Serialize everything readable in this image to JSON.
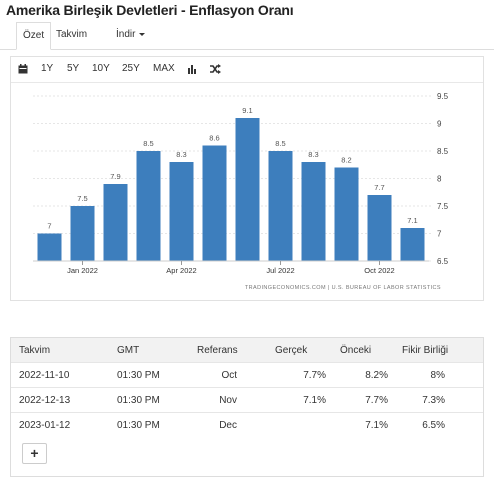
{
  "title": "Amerika Birleşik Devletleri - Enflasyon Oranı",
  "tabs": [
    {
      "label": "Özet"
    },
    {
      "label": "Takvim"
    },
    {
      "label": "İndir"
    }
  ],
  "toolbar": {
    "ranges": [
      "1Y",
      "5Y",
      "10Y",
      "25Y",
      "MAX"
    ],
    "icons": [
      "calendar-icon",
      "bar-chart-icon",
      "shuffle-icon"
    ]
  },
  "chart_data": {
    "type": "bar",
    "color": "#3d7ebd",
    "categories": [
      "Dec 2021",
      "Jan 2022",
      "Feb 2022",
      "Mar 2022",
      "Apr 2022",
      "May 2022",
      "Jun 2022",
      "Jul 2022",
      "Aug 2022",
      "Sep 2022",
      "Oct 2022",
      "Nov 2022"
    ],
    "values": [
      7,
      7.5,
      7.9,
      8.5,
      8.3,
      8.6,
      9.1,
      8.5,
      8.3,
      8.2,
      7.7,
      7.1
    ],
    "data_labels": [
      "7",
      "7.5",
      "7.9",
      "8.5",
      "8.3",
      "8.6",
      "9.1",
      "8.5",
      "8.3",
      "8.2",
      "7.7",
      "7.1"
    ],
    "x_tick_labels": [
      "Jan 2022",
      "Apr 2022",
      "Jul 2022",
      "Oct 2022"
    ],
    "y_ticks": [
      "6.5",
      "7",
      "7.5",
      "8",
      "8.5",
      "9",
      "9.5"
    ],
    "ylim": [
      6.5,
      9.5
    ],
    "y_axis_side": "right",
    "grid": true,
    "source": "TRADINGECONOMICS.COM | U.S. BUREAU OF LABOR STATISTICS"
  },
  "table": {
    "headers": [
      "Takvim",
      "GMT",
      "Referans",
      "Gerçek",
      "Önceki",
      "Fikir Birliği"
    ],
    "rows": [
      [
        "2022-11-10",
        "01:30 PM",
        "Oct",
        "7.7%",
        "8.2%",
        "8%"
      ],
      [
        "2022-12-13",
        "01:30 PM",
        "Nov",
        "7.1%",
        "7.7%",
        "7.3%"
      ],
      [
        "2023-01-12",
        "01:30 PM",
        "Dec",
        "",
        "7.1%",
        "6.5%"
      ]
    ],
    "add_label": "+"
  }
}
